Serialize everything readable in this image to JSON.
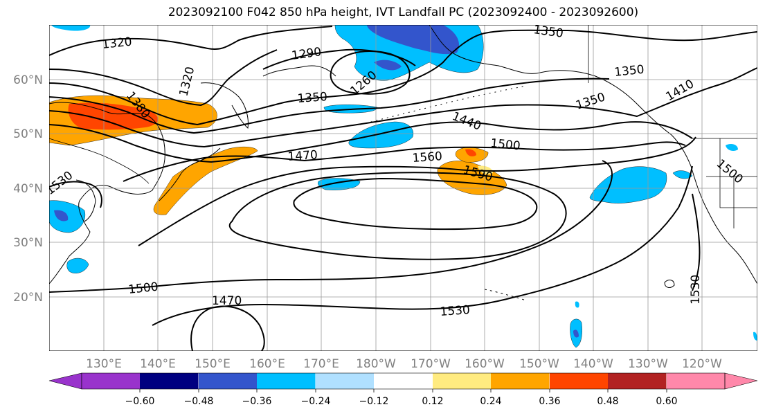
{
  "title": "2023092100 F042 850 hPa height, IVT Landfall PC (2023092400 - 2023092600)",
  "map": {
    "lon_labels": [
      "130°E",
      "140°E",
      "150°E",
      "160°E",
      "170°E",
      "180°W",
      "170°W",
      "160°W",
      "150°W",
      "140°W",
      "130°W",
      "120°W"
    ],
    "lat_labels": [
      "60°N",
      "50°N",
      "40°N",
      "30°N",
      "20°N"
    ],
    "contour_labels": [
      "1320",
      "1290",
      "1350",
      "1320",
      "1260",
      "1380",
      "1350",
      "1350",
      "1410",
      "1350",
      "1440",
      "1500",
      "1470",
      "1560",
      "1590",
      "1530",
      "1500",
      "1500",
      "1470",
      "1530",
      "1530"
    ]
  },
  "colorbar": {
    "ticks": [
      "−0.60",
      "−0.48",
      "−0.36",
      "−0.24",
      "−0.12",
      "0.12",
      "0.24",
      "0.36",
      "0.48",
      "0.60"
    ],
    "colors": [
      "#9933cc",
      "#000080",
      "#3355cc",
      "#00bfff",
      "#b0e0ff",
      "#ffffff",
      "#ffeb80",
      "#ffa500",
      "#ff4500",
      "#b22222",
      "#ff88aa"
    ]
  }
}
